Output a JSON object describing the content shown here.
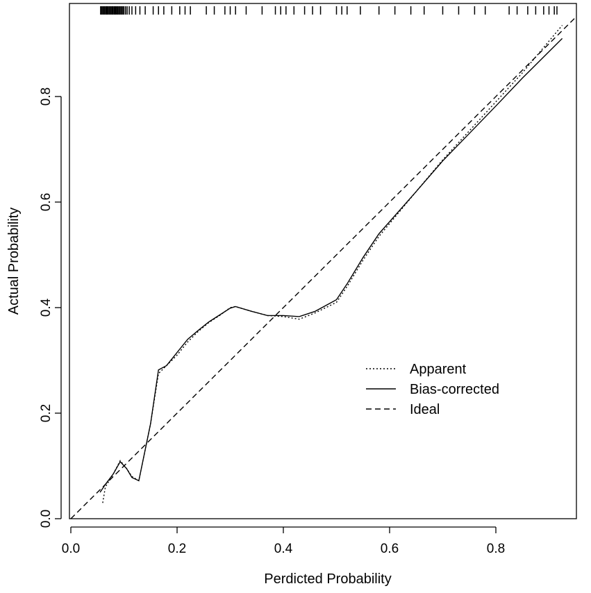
{
  "chart_data": {
    "type": "line",
    "title": "",
    "xlabel": "Perdicted Probability",
    "ylabel": "Actual Probability",
    "xlim": [
      0,
      0.93
    ],
    "ylim": [
      0,
      0.96
    ],
    "x_ticks": [
      0.0,
      0.2,
      0.4,
      0.6,
      0.8
    ],
    "y_ticks": [
      0.0,
      0.2,
      0.4,
      0.6,
      0.8
    ],
    "x_tick_labels": [
      "0.0",
      "0.2",
      "0.4",
      "0.6",
      "0.8"
    ],
    "y_tick_labels": [
      "0.0",
      "0.2",
      "0.4",
      "0.6",
      "0.8"
    ],
    "grid": false,
    "legend_position": "center-right",
    "series": [
      {
        "name": "Apparent",
        "style": "dotted",
        "color": "#000000",
        "points": [
          [
            0.06,
            0.03
          ],
          [
            0.065,
            0.06
          ],
          [
            0.08,
            0.085
          ],
          [
            0.093,
            0.11
          ],
          [
            0.105,
            0.095
          ],
          [
            0.115,
            0.08
          ],
          [
            0.128,
            0.072
          ],
          [
            0.15,
            0.18
          ],
          [
            0.165,
            0.275
          ],
          [
            0.18,
            0.29
          ],
          [
            0.2,
            0.31
          ],
          [
            0.22,
            0.335
          ],
          [
            0.24,
            0.355
          ],
          [
            0.26,
            0.372
          ],
          [
            0.28,
            0.385
          ],
          [
            0.3,
            0.4
          ],
          [
            0.31,
            0.402
          ],
          [
            0.34,
            0.393
          ],
          [
            0.37,
            0.385
          ],
          [
            0.4,
            0.383
          ],
          [
            0.43,
            0.378
          ],
          [
            0.46,
            0.39
          ],
          [
            0.5,
            0.41
          ],
          [
            0.52,
            0.44
          ],
          [
            0.55,
            0.49
          ],
          [
            0.58,
            0.535
          ],
          [
            0.65,
            0.62
          ],
          [
            0.7,
            0.68
          ],
          [
            0.75,
            0.735
          ],
          [
            0.8,
            0.79
          ],
          [
            0.85,
            0.845
          ],
          [
            0.9,
            0.905
          ],
          [
            0.925,
            0.935
          ]
        ]
      },
      {
        "name": "Bias-corrected",
        "style": "solid",
        "color": "#000000",
        "points": [
          [
            0.055,
            0.05
          ],
          [
            0.065,
            0.065
          ],
          [
            0.08,
            0.085
          ],
          [
            0.093,
            0.108
          ],
          [
            0.105,
            0.095
          ],
          [
            0.115,
            0.078
          ],
          [
            0.128,
            0.072
          ],
          [
            0.15,
            0.18
          ],
          [
            0.165,
            0.282
          ],
          [
            0.18,
            0.29
          ],
          [
            0.2,
            0.315
          ],
          [
            0.22,
            0.34
          ],
          [
            0.24,
            0.357
          ],
          [
            0.26,
            0.373
          ],
          [
            0.28,
            0.386
          ],
          [
            0.3,
            0.399
          ],
          [
            0.31,
            0.402
          ],
          [
            0.34,
            0.393
          ],
          [
            0.37,
            0.385
          ],
          [
            0.4,
            0.385
          ],
          [
            0.43,
            0.383
          ],
          [
            0.46,
            0.393
          ],
          [
            0.5,
            0.415
          ],
          [
            0.52,
            0.445
          ],
          [
            0.55,
            0.495
          ],
          [
            0.58,
            0.54
          ],
          [
            0.65,
            0.62
          ],
          [
            0.7,
            0.678
          ],
          [
            0.75,
            0.73
          ],
          [
            0.8,
            0.782
          ],
          [
            0.85,
            0.835
          ],
          [
            0.9,
            0.885
          ],
          [
            0.925,
            0.91
          ]
        ]
      },
      {
        "name": "Ideal",
        "style": "dashed",
        "color": "#000000",
        "points": [
          [
            0,
            0
          ],
          [
            0.96,
            0.96
          ]
        ]
      }
    ],
    "rug": [
      0.056,
      0.058,
      0.06,
      0.061,
      0.063,
      0.064,
      0.066,
      0.067,
      0.069,
      0.07,
      0.072,
      0.073,
      0.075,
      0.076,
      0.078,
      0.079,
      0.081,
      0.082,
      0.084,
      0.086,
      0.088,
      0.09,
      0.092,
      0.094,
      0.096,
      0.098,
      0.1,
      0.103,
      0.106,
      0.11,
      0.115,
      0.122,
      0.13,
      0.14,
      0.155,
      0.165,
      0.175,
      0.19,
      0.205,
      0.215,
      0.225,
      0.255,
      0.27,
      0.29,
      0.3,
      0.31,
      0.33,
      0.36,
      0.385,
      0.395,
      0.405,
      0.42,
      0.44,
      0.455,
      0.47,
      0.5,
      0.51,
      0.52,
      0.545,
      0.58,
      0.61,
      0.64,
      0.665,
      0.7,
      0.73,
      0.76,
      0.78,
      0.825,
      0.84,
      0.86,
      0.875,
      0.89,
      0.9,
      0.91,
      0.915
    ]
  }
}
